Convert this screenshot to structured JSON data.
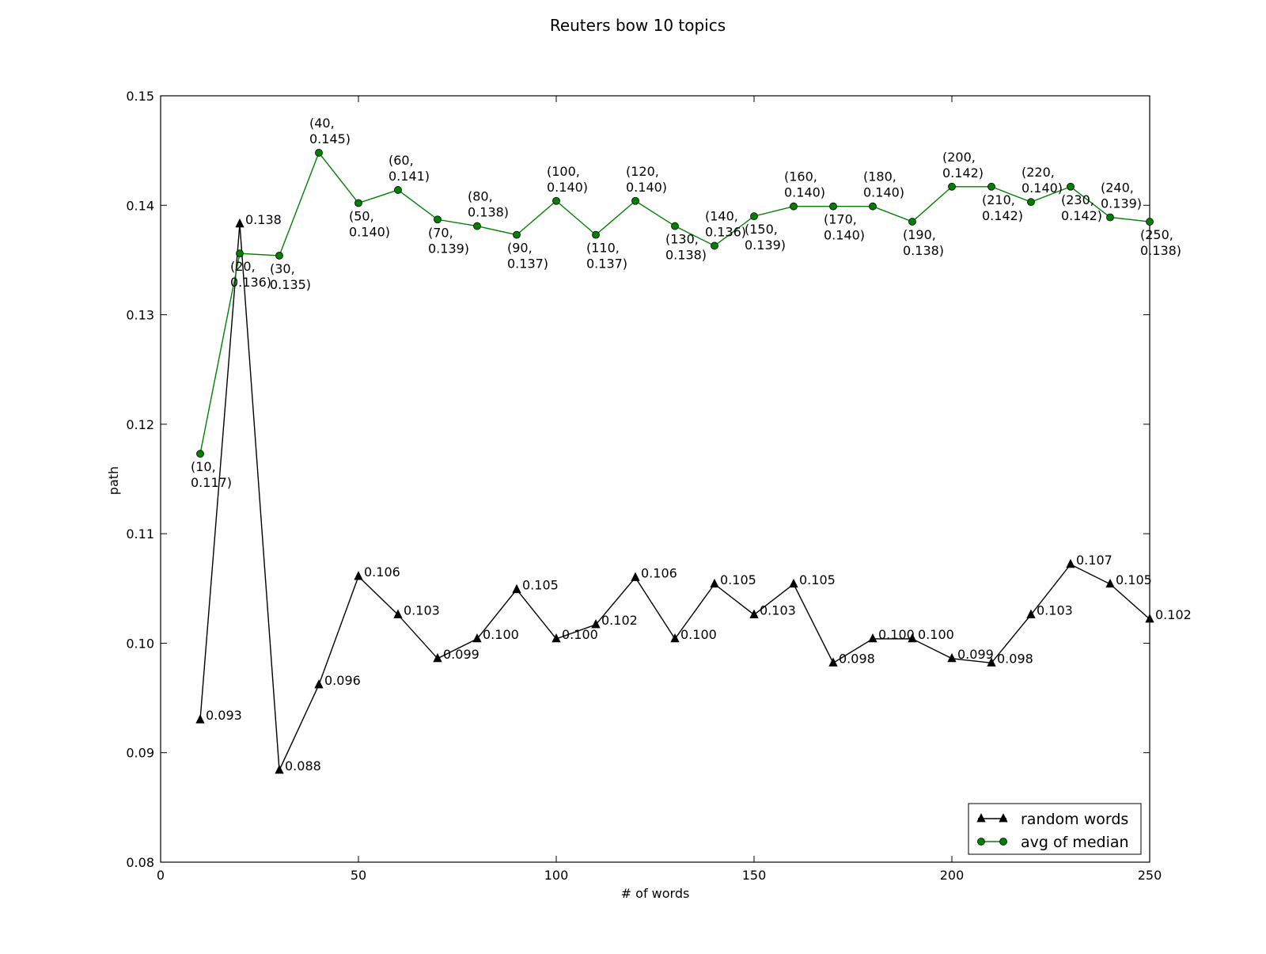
{
  "chart_data": {
    "type": "line",
    "title": "Reuters bow  10 topics",
    "xlabel": "# of words",
    "ylabel": "path",
    "xlim": [
      0,
      250
    ],
    "ylim": [
      0.08,
      0.15
    ],
    "xticks": [
      0,
      50,
      100,
      150,
      200,
      250
    ],
    "xtick_labels": [
      "0",
      "50",
      "100",
      "150",
      "200",
      "250"
    ],
    "yticks": [
      0.08,
      0.09,
      0.1,
      0.11,
      0.12,
      0.13,
      0.14,
      0.15
    ],
    "ytick_labels": [
      "0.08",
      "0.09",
      "0.10",
      "0.11",
      "0.12",
      "0.13",
      "0.14",
      "0.15"
    ],
    "grid": false,
    "legend_position": "bottom-right",
    "x": [
      10,
      20,
      30,
      40,
      50,
      60,
      70,
      80,
      90,
      100,
      110,
      120,
      130,
      140,
      150,
      160,
      170,
      180,
      190,
      200,
      210,
      220,
      230,
      240,
      250
    ],
    "series": [
      {
        "name": "random words",
        "color": "#000000",
        "marker": "triangle",
        "values": [
          0.093,
          0.1383,
          0.0884,
          0.0962,
          0.1061,
          0.1026,
          0.0986,
          0.1004,
          0.1049,
          0.1004,
          0.1017,
          0.106,
          0.1004,
          0.1054,
          0.1026,
          0.1054,
          0.0982,
          0.1004,
          0.1004,
          0.0986,
          0.0982,
          0.1026,
          0.1072,
          0.1054,
          0.1022
        ],
        "labels": [
          "0.093",
          "0.138",
          "0.088",
          "0.096",
          "0.106",
          "0.103",
          "0.099",
          "0.100",
          "0.105",
          "0.100",
          "0.102",
          "0.106",
          "0.100",
          "0.105",
          "0.103",
          "0.105",
          "0.098",
          "0.100",
          "0.100",
          "0.099",
          "0.098",
          "0.103",
          "0.107",
          "0.105",
          "0.102"
        ]
      },
      {
        "name": "avg of median",
        "color": "#008000",
        "marker": "circle",
        "values": [
          0.1173,
          0.1356,
          0.1354,
          0.1448,
          0.1402,
          0.1414,
          0.1387,
          0.1381,
          0.1373,
          0.1404,
          0.1373,
          0.1404,
          0.1381,
          0.1363,
          0.139,
          0.1399,
          0.1399,
          0.1399,
          0.1385,
          0.1417,
          0.1417,
          0.1403,
          0.1417,
          0.1389,
          0.1385
        ],
        "labels": [
          "(10,\n0.117)",
          "(20,\n0.136)",
          "(30,\n0.135)",
          "(40,\n0.145)",
          "(50,\n0.140)",
          "(60,\n0.141)",
          "(70,\n0.139)",
          "(80,\n0.138)",
          "(90,\n0.137)",
          "(100,\n0.140)",
          "(110,\n0.137)",
          "(120,\n0.140)",
          "(130,\n0.138)",
          "(140,\n0.136)",
          "(150,\n0.139)",
          "(160,\n0.140)",
          "(170,\n0.140)",
          "(180,\n0.140)",
          "(190,\n0.138)",
          "(200,\n0.142)",
          "(210,\n0.142)",
          "(220,\n0.140)",
          "(230,\n0.142)",
          "(240,\n0.139)",
          "(250,\n0.138)"
        ],
        "label_side": [
          "below",
          "below",
          "below",
          "above",
          "below",
          "above",
          "below",
          "above",
          "below",
          "above",
          "below",
          "above",
          "below",
          "above",
          "below",
          "above",
          "below",
          "above",
          "below",
          "above",
          "below",
          "above",
          "below",
          "above",
          "below"
        ]
      }
    ]
  }
}
